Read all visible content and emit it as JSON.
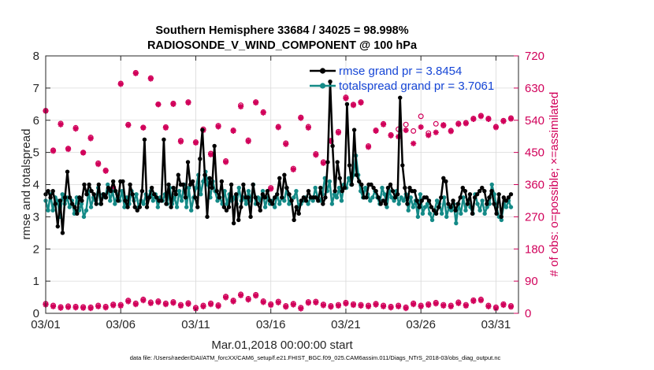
{
  "chart_data": {
    "type": "line",
    "title_line1": "Southern Hemisphere 33684 / 34025 = 98.998%",
    "title_line2": "RADIOSONDE_V_WIND_COMPONENT @ 100 hPa",
    "xlabel": "Mar.01,2018 00:00:00 start",
    "ylabel": "rmse and totalspread",
    "ylabel_right": "# of obs: o=possible; ×=assimilated",
    "xlim": [
      0,
      31.5
    ],
    "ylim": [
      0,
      8
    ],
    "ylim_right": [
      0,
      720
    ],
    "x_ticks": [
      0,
      5,
      10,
      15,
      20,
      25,
      30
    ],
    "x_tick_labels": [
      "03/01",
      "03/06",
      "03/11",
      "03/16",
      "03/21",
      "03/26",
      "03/31"
    ],
    "y_ticks": [
      "0",
      "1",
      "2",
      "3",
      "4",
      "5",
      "6",
      "7",
      "8"
    ],
    "y_right_ticks": [
      "0",
      "90",
      "180",
      "270",
      "360",
      "450",
      "540",
      "630",
      "720"
    ],
    "colors": {
      "rmse": "#000000",
      "spread": "#148a87",
      "obs": "#d1005a",
      "legend_text": "#1646d6"
    },
    "series": [
      {
        "name": "rmse",
        "legend": "rmse grand pr = 3.8454",
        "values": [
          3.7,
          3.8,
          3.6,
          3.8,
          3.4,
          2.7,
          3.5,
          2.5,
          3.6,
          4.4,
          3.6,
          3.4,
          3.3,
          3.1,
          3.6,
          3.5,
          4.0,
          3.7,
          4.0,
          3.8,
          3.7,
          3.4,
          4.0,
          3.4,
          3.7,
          3.6,
          3.9,
          3.8,
          4.1,
          3.8,
          3.5,
          4.1,
          4.1,
          3.5,
          3.3,
          4.0,
          3.7,
          3.3,
          3.2,
          3.3,
          3.8,
          5.4,
          3.3,
          3.6,
          3.9,
          3.7,
          3.6,
          3.5,
          3.5,
          5.4,
          3.4,
          4.0,
          3.3,
          3.9,
          3.7,
          4.3,
          4.0,
          4.0,
          3.6,
          4.7,
          4.0,
          4.1,
          3.6,
          3.3,
          4.8,
          5.7,
          4.3,
          3.0,
          4.2,
          3.9,
          5.2,
          3.8,
          3.6,
          4.1,
          3.3,
          3.2,
          3.3,
          4.0,
          2.8,
          3.7,
          2.9,
          3.3,
          4.0,
          3.6,
          3.6,
          3.0,
          4.0,
          3.6,
          3.4,
          3.2,
          3.7,
          3.6,
          3.8,
          3.5,
          3.4,
          3.6,
          3.7,
          4.2,
          3.6,
          4.3,
          3.9,
          3.7,
          3.5,
          2.9,
          3.3,
          3.1,
          3.5,
          3.6,
          3.5,
          3.8,
          3.6,
          3.6,
          3.6,
          3.5,
          3.9,
          3.4,
          3.6,
          4.7,
          7.2,
          5.2,
          3.8,
          4.7,
          4.2,
          3.8,
          3.9,
          6.5,
          4.6,
          4.0,
          5.7,
          4.3,
          4.1,
          4.0,
          3.6,
          3.6,
          4.0,
          4.0,
          3.9,
          3.8,
          3.6,
          3.4,
          3.5,
          3.4,
          3.9,
          4.0,
          3.8,
          3.6,
          3.7,
          6.7,
          4.6,
          3.9,
          3.4,
          3.9,
          3.8,
          3.8,
          3.5,
          3.3,
          3.5,
          3.6,
          3.6,
          3.5,
          3.3,
          3.2,
          3.1,
          3.3,
          3.6,
          4.2,
          4.1,
          3.4,
          3.3,
          3.5,
          3.2,
          3.4,
          3.6,
          3.9,
          3.8,
          3.4,
          3.7,
          3.1,
          3.6,
          3.7,
          3.8,
          3.9,
          3.8,
          3.4,
          3.6,
          3.8,
          3.4,
          3.1,
          3.7,
          3.0,
          3.6,
          3.5,
          3.6,
          3.7
        ]
      },
      {
        "name": "totalspread",
        "legend": "totalspread grand pr = 3.7061",
        "values": [
          3.5,
          3.2,
          3.7,
          3.2,
          3.6,
          3.5,
          3.0,
          3.7,
          3.4,
          3.6,
          3.3,
          3.5,
          3.1,
          3.6,
          3.2,
          3.4,
          3.0,
          3.2,
          3.8,
          3.3,
          3.6,
          3.5,
          3.9,
          3.4,
          3.7,
          3.6,
          4.0,
          3.5,
          3.8,
          3.4,
          3.7,
          3.5,
          3.8,
          3.3,
          3.6,
          3.4,
          3.8,
          3.5,
          3.7,
          3.3,
          3.5,
          3.4,
          3.7,
          3.6,
          3.8,
          3.5,
          3.7,
          3.3,
          3.6,
          3.5,
          3.7,
          3.4,
          3.9,
          3.4,
          3.6,
          3.3,
          3.8,
          3.5,
          4.0,
          3.3,
          3.9,
          3.2,
          3.6,
          3.9,
          4.3,
          3.7,
          4.1,
          4.4,
          4.0,
          3.6,
          4.1,
          3.8,
          3.5,
          3.6,
          3.4,
          3.8,
          3.4,
          3.7,
          3.5,
          3.6,
          3.4,
          3.9,
          3.5,
          3.6,
          3.4,
          3.8,
          3.5,
          4.0,
          3.4,
          3.6,
          3.5,
          3.8,
          3.3,
          3.6,
          3.4,
          3.5,
          3.3,
          3.7,
          3.4,
          3.6,
          3.5,
          3.9,
          3.4,
          3.5,
          3.6,
          3.8,
          3.3,
          3.4,
          3.5,
          3.6,
          3.4,
          3.6,
          3.5,
          3.9,
          3.6,
          3.5,
          3.7,
          4.2,
          3.8,
          4.1,
          3.4,
          3.7,
          3.6,
          3.9,
          3.5,
          4.0,
          3.9,
          4.2,
          4.0,
          4.3,
          4.9,
          4.3,
          3.8,
          3.6,
          3.9,
          3.7,
          3.5,
          3.6,
          3.8,
          3.6,
          3.4,
          3.9,
          3.7,
          3.3,
          3.8,
          3.6,
          3.5,
          3.8,
          3.4,
          3.6,
          3.5,
          3.7,
          3.2,
          3.6,
          3.3,
          3.5,
          3.0,
          3.7,
          3.1,
          3.3,
          3.4,
          3.1,
          2.9,
          3.2,
          3.5,
          3.4,
          3.1,
          3.6,
          3.0,
          3.3,
          3.2,
          3.4,
          2.8,
          3.4,
          3.1,
          3.6,
          3.2,
          3.5,
          3.3,
          3.1,
          3.7,
          3.4,
          3.2,
          3.5,
          3.1,
          3.3,
          3.4,
          4.0,
          3.7,
          3.3,
          3.0,
          2.9,
          3.4,
          3.3,
          3.5,
          3.3
        ]
      }
    ],
    "obs_x": [
      0,
      0.5,
      1,
      1.5,
      2,
      2.5,
      3,
      3.5,
      4,
      4.5,
      5,
      5.5,
      6,
      6.5,
      7,
      7.5,
      8,
      8.5,
      9,
      9.5,
      10,
      10.5,
      11,
      11.5,
      12,
      12.5,
      13,
      13.5,
      14,
      14.5,
      15,
      15.5,
      16,
      16.5,
      17,
      17.5,
      18,
      18.5,
      19,
      19.5,
      20,
      20.5,
      21,
      21.5,
      22,
      22.5,
      23,
      23.5,
      24,
      24.5,
      25,
      25.5,
      26,
      26.5,
      27,
      27.5,
      28,
      28.5,
      29,
      29.5,
      30,
      30.5,
      31
    ],
    "obs_possible": [
      567,
      456,
      531,
      461,
      519,
      450,
      492,
      420,
      400,
      352,
      643,
      528,
      673,
      520,
      658,
      585,
      521,
      587,
      483,
      591,
      479,
      515,
      447,
      525,
      426,
      512,
      582,
      484,
      591,
      563,
      351,
      522,
      476,
      405,
      548,
      522,
      446,
      423,
      483,
      508,
      604,
      584,
      591,
      468,
      512,
      530,
      499,
      515,
      528,
      510,
      551,
      504,
      530,
      525,
      511,
      531,
      533,
      545,
      553,
      545,
      522,
      539,
      546
    ],
    "obs_assimilated": [
      566,
      454,
      528,
      459,
      516,
      449,
      489,
      417,
      398,
      349,
      641,
      526,
      671,
      519,
      656,
      584,
      519,
      585,
      480,
      589,
      477,
      512,
      444,
      522,
      423,
      510,
      578,
      481,
      589,
      561,
      348,
      520,
      473,
      402,
      546,
      519,
      443,
      420,
      481,
      505,
      601,
      582,
      589,
      465,
      510,
      528,
      497,
      494,
      512,
      475,
      521,
      498,
      506,
      527,
      509,
      529,
      531,
      543,
      551,
      543,
      520,
      537,
      544
    ],
    "obs_possible_low": [
      27,
      22,
      18,
      20,
      19,
      18,
      17,
      22,
      19,
      25,
      24,
      36,
      28,
      39,
      31,
      34,
      28,
      32,
      24,
      29,
      16,
      22,
      28,
      23,
      47,
      36,
      53,
      41,
      52,
      34,
      26,
      33,
      21,
      27,
      16,
      32,
      33,
      25,
      21,
      24,
      30,
      26,
      24,
      22,
      27,
      22,
      19,
      22,
      17,
      28,
      22,
      26,
      30,
      24,
      22,
      31,
      24,
      37,
      39,
      22,
      17,
      26,
      21
    ],
    "obs_assimilated_low": [
      24,
      19,
      15,
      17,
      16,
      15,
      14,
      19,
      16,
      22,
      21,
      33,
      25,
      36,
      28,
      31,
      25,
      29,
      21,
      26,
      13,
      19,
      25,
      20,
      44,
      33,
      50,
      38,
      49,
      31,
      23,
      30,
      18,
      24,
      13,
      29,
      30,
      22,
      18,
      21,
      27,
      23,
      21,
      19,
      24,
      19,
      16,
      19,
      14,
      25,
      19,
      23,
      27,
      21,
      19,
      28,
      21,
      34,
      36,
      19,
      14,
      23,
      18
    ]
  },
  "footnote": "data file: /Users/raeder/DAI/ATM_forcXX/CAM6_setup/f.e21.FHIST_BGC.f09_025.CAM6assim.011/Diags_NTrS_2018-03/obs_diag_output.nc"
}
